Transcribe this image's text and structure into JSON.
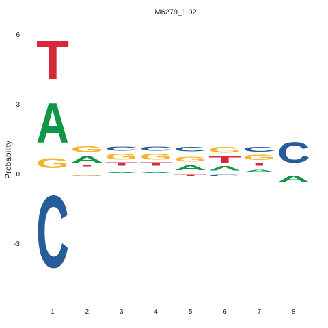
{
  "chart_data": {
    "type": "sequence-logo",
    "title": "M6279_1.02",
    "ylabel": "Probability",
    "xlabel": "",
    "ylim": [
      -5.2,
      6.3
    ],
    "yticks": [
      -3,
      0,
      3,
      6
    ],
    "categories": [
      "1",
      "2",
      "3",
      "4",
      "5",
      "6",
      "7",
      "8"
    ],
    "colors": {
      "A": "#109648",
      "C": "#255c99",
      "G": "#f7b32b",
      "T": "#d62839"
    },
    "positions": [
      {
        "pos": "1",
        "letters": [
          {
            "base": "G",
            "bottom": 0.1,
            "top": 0.8
          },
          {
            "base": "A",
            "bottom": 0.8,
            "top": 3.55
          },
          {
            "base": "T",
            "bottom": 3.55,
            "top": 6.2
          },
          {
            "base": "C",
            "bottom": -5.0,
            "top": -0.05
          }
        ]
      },
      {
        "pos": "2",
        "letters": [
          {
            "base": "T",
            "bottom": 0.3,
            "top": 0.38
          },
          {
            "base": "A",
            "bottom": 0.38,
            "top": 0.85
          },
          {
            "base": "G",
            "bottom": 0.85,
            "top": 1.25
          },
          {
            "base": "C",
            "bottom": -0.12,
            "top": -0.05
          },
          {
            "base": "G",
            "bottom": -0.12,
            "top": -0.06
          }
        ]
      },
      {
        "pos": "3",
        "letters": [
          {
            "base": "A",
            "bottom": 0.02,
            "top": 0.08
          },
          {
            "base": "T",
            "bottom": 0.3,
            "top": 0.53
          },
          {
            "base": "G",
            "bottom": 0.53,
            "top": 0.93
          },
          {
            "base": "C",
            "bottom": 0.93,
            "top": 1.2
          }
        ]
      },
      {
        "pos": "4",
        "letters": [
          {
            "base": "A",
            "bottom": 0.02,
            "top": 0.08
          },
          {
            "base": "T",
            "bottom": 0.3,
            "top": 0.53
          },
          {
            "base": "G",
            "bottom": 0.53,
            "top": 0.93
          },
          {
            "base": "C",
            "bottom": 0.93,
            "top": 1.2
          }
        ]
      },
      {
        "pos": "5",
        "letters": [
          {
            "base": "A",
            "bottom": 0.08,
            "top": 0.4
          },
          {
            "base": "G",
            "bottom": 0.45,
            "top": 0.78
          },
          {
            "base": "C",
            "bottom": 0.9,
            "top": 1.2
          },
          {
            "base": "T",
            "bottom": -0.12,
            "top": -0.04
          }
        ]
      },
      {
        "pos": "6",
        "letters": [
          {
            "base": "A",
            "bottom": 0.08,
            "top": 0.37
          },
          {
            "base": "T",
            "bottom": 0.37,
            "top": 0.82
          },
          {
            "base": "G",
            "bottom": 0.82,
            "top": 1.2
          },
          {
            "base": "C",
            "bottom": -0.12,
            "top": -0.04
          }
        ]
      },
      {
        "pos": "7",
        "letters": [
          {
            "base": "A",
            "bottom": 0.04,
            "top": 0.18
          },
          {
            "base": "T",
            "bottom": 0.3,
            "top": 0.52
          },
          {
            "base": "G",
            "bottom": 0.52,
            "top": 0.87
          },
          {
            "base": "C",
            "bottom": 0.87,
            "top": 1.2
          }
        ]
      },
      {
        "pos": "8",
        "letters": [
          {
            "base": "C",
            "bottom": 0.2,
            "top": 1.6
          },
          {
            "base": "A",
            "bottom": -0.45,
            "top": 0.0
          }
        ]
      }
    ]
  }
}
